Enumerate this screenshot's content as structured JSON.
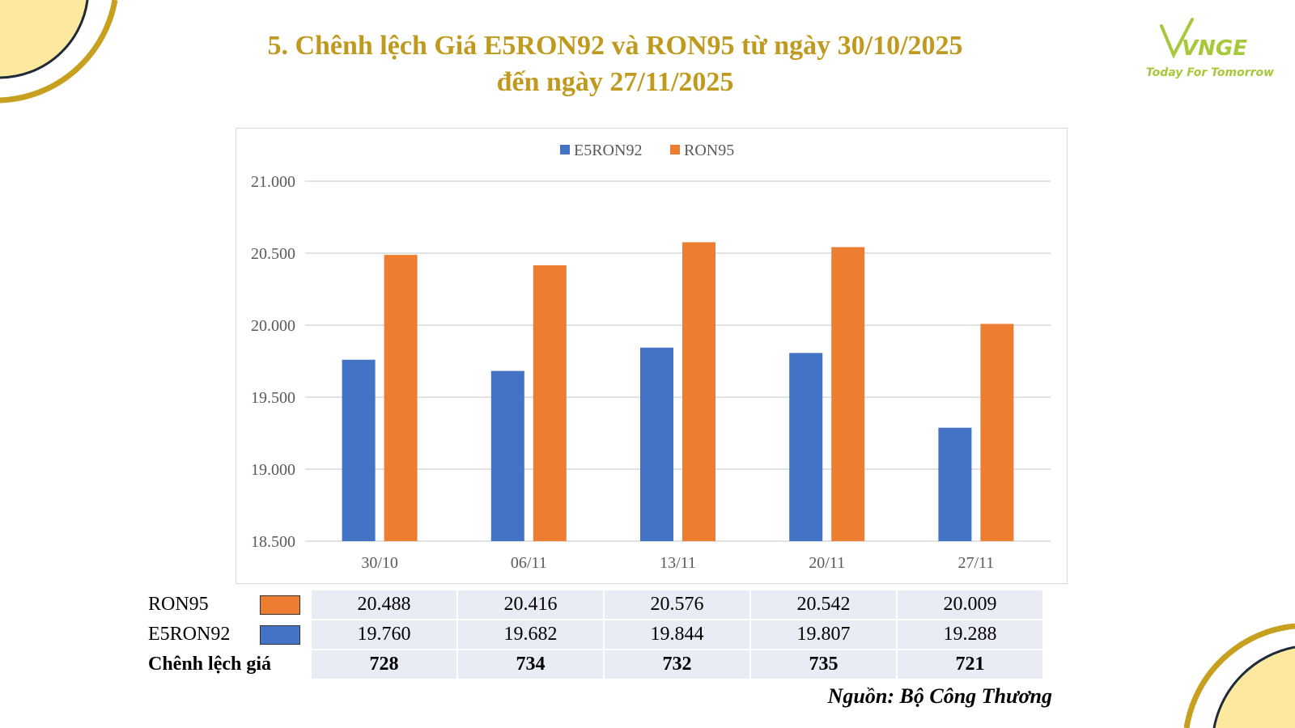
{
  "title_line1": "5. Chênh lệch Giá E5RON92 và RON95 từ ngày 30/10/2025",
  "title_line2": "đến ngày 27/11/2025",
  "logo": {
    "name": "VNGE",
    "tagline": "Today For Tomorrow"
  },
  "chart_data": {
    "type": "bar",
    "categories": [
      "30/10",
      "06/11",
      "13/11",
      "20/11",
      "27/11"
    ],
    "series": [
      {
        "name": "E5RON92",
        "color": "#4472c4",
        "values": [
          19760,
          19682,
          19844,
          19807,
          19288
        ]
      },
      {
        "name": "RON95",
        "color": "#ed7d31",
        "values": [
          20488,
          20416,
          20576,
          20542,
          20009
        ]
      }
    ],
    "ylim": [
      18500,
      21000
    ],
    "yticks": [
      "21.000",
      "20.500",
      "20.000",
      "19.500",
      "19.000",
      "18.500"
    ],
    "ytick_values": [
      21000,
      20500,
      20000,
      19500,
      19000,
      18500
    ],
    "legend_position": "top-center",
    "grid": true
  },
  "table": {
    "rows": [
      {
        "label": "RON95",
        "swatch_color": "#ed7d31",
        "values": [
          "20.488",
          "20.416",
          "20.576",
          "20.542",
          "20.009"
        ]
      },
      {
        "label": "E5RON92",
        "swatch_color": "#4472c4",
        "values": [
          "19.760",
          "19.682",
          "19.844",
          "19.807",
          "19.288"
        ]
      },
      {
        "label": "Chênh lệch giá",
        "values": [
          "728",
          "734",
          "732",
          "735",
          "721"
        ]
      }
    ]
  },
  "source": "Nguồn: Bộ Công Thương",
  "colors": {
    "title": "#c09a1e",
    "decor_fill": "#fde8a0",
    "decor_ring": "#c8a020",
    "logo": "#a6c83a"
  }
}
